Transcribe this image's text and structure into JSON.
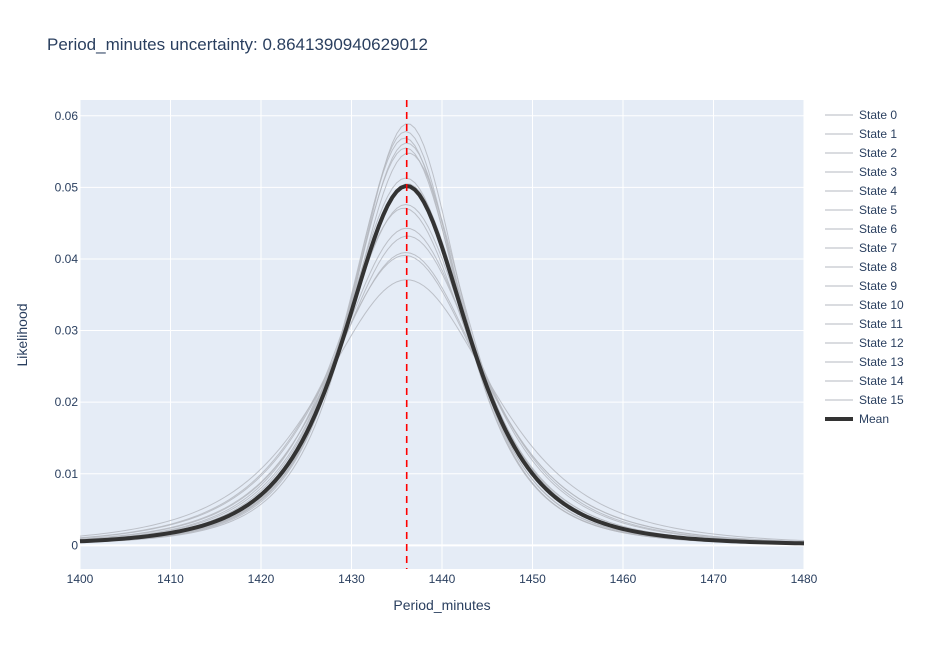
{
  "chart_data": {
    "type": "line",
    "title": "Period_minutes uncertainty: 0.8641390940629012",
    "xlabel": "Period_minutes",
    "ylabel": "Likelihood",
    "xlim": [
      1400,
      1480
    ],
    "ylim": [
      -0.0033,
      0.0622
    ],
    "x_ticks": [
      1400,
      1410,
      1420,
      1430,
      1440,
      1450,
      1460,
      1470,
      1480
    ],
    "x_tick_labels": [
      "1400",
      "1410",
      "1420",
      "1430",
      "1440",
      "1450",
      "1460",
      "1470",
      "1480"
    ],
    "y_ticks": [
      0,
      0.01,
      0.02,
      0.03,
      0.04,
      0.05,
      0.06
    ],
    "y_tick_labels": [
      "0",
      "0.01",
      "0.02",
      "0.03",
      "0.04",
      "0.05",
      "0.06"
    ],
    "grid": true,
    "legend_position": "right",
    "reference_line": {
      "x": 1436.1,
      "color": "#ff0000",
      "style": "dashed"
    },
    "colors": {
      "plot_bg": "#e5ecf6",
      "grid": "#ffffff",
      "state_line": "#b5b8c0",
      "mean_line": "#333333",
      "text": "#2a3f5f"
    },
    "series": [
      {
        "name": "State 0",
        "peak": 0.0589,
        "mu": 1436.2,
        "sigma": 6.3
      },
      {
        "name": "State 1",
        "peak": 0.0578,
        "mu": 1436.0,
        "sigma": 6.4
      },
      {
        "name": "State 2",
        "peak": 0.0569,
        "mu": 1435.9,
        "sigma": 6.5
      },
      {
        "name": "State 3",
        "peak": 0.0562,
        "mu": 1436.1,
        "sigma": 6.6
      },
      {
        "name": "State 4",
        "peak": 0.0555,
        "mu": 1436.0,
        "sigma": 6.7
      },
      {
        "name": "State 5",
        "peak": 0.0548,
        "mu": 1436.3,
        "sigma": 6.8
      },
      {
        "name": "State 6",
        "peak": 0.0513,
        "mu": 1436.0,
        "sigma": 7.2
      },
      {
        "name": "State 7",
        "peak": 0.0505,
        "mu": 1436.2,
        "sigma": 7.3
      },
      {
        "name": "State 8",
        "peak": 0.0476,
        "mu": 1436.0,
        "sigma": 7.7
      },
      {
        "name": "State 9",
        "peak": 0.0471,
        "mu": 1435.8,
        "sigma": 7.8
      },
      {
        "name": "State 10",
        "peak": 0.0443,
        "mu": 1436.1,
        "sigma": 8.3
      },
      {
        "name": "State 11",
        "peak": 0.0432,
        "mu": 1436.2,
        "sigma": 8.5
      },
      {
        "name": "State 12",
        "peak": 0.0409,
        "mu": 1436.0,
        "sigma": 9.0
      },
      {
        "name": "State 13",
        "peak": 0.0405,
        "mu": 1435.9,
        "sigma": 9.1
      },
      {
        "name": "State 14",
        "peak": 0.0371,
        "mu": 1436.1,
        "sigma": 10.0
      },
      {
        "name": "State 15",
        "peak": 0.05,
        "mu": 1436.0,
        "sigma": 7.4
      },
      {
        "name": "Mean",
        "peak": 0.0502,
        "mu": 1436.1,
        "sigma": 7.2
      }
    ]
  }
}
